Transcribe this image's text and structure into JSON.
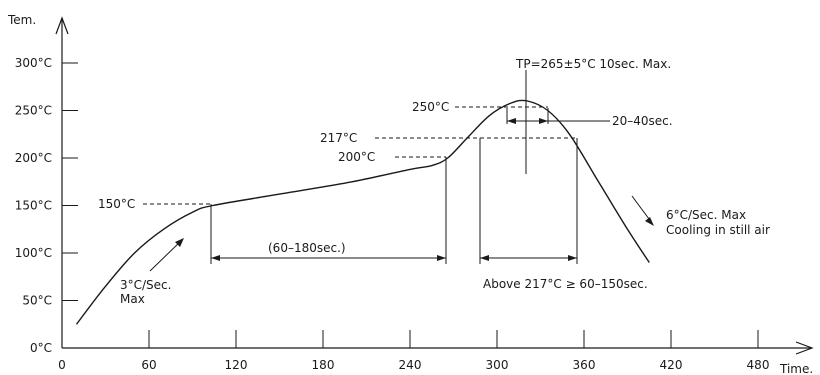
{
  "chart_data": {
    "type": "line",
    "title": "",
    "xlabel": "Time.",
    "ylabel": "Tem.",
    "xlim": [
      0,
      520
    ],
    "ylim": [
      0,
      330
    ],
    "x_ticks": [
      {
        "value": 0,
        "label": "0"
      },
      {
        "value": 60,
        "label": "60"
      },
      {
        "value": 120,
        "label": "120"
      },
      {
        "value": 180,
        "label": "180"
      },
      {
        "value": 240,
        "label": "240"
      },
      {
        "value": 300,
        "label": "300"
      },
      {
        "value": 360,
        "label": "360"
      },
      {
        "value": 420,
        "label": "420"
      },
      {
        "value": 480,
        "label": "480"
      }
    ],
    "y_ticks": [
      {
        "value": 0,
        "label": "0°C"
      },
      {
        "value": 50,
        "label": "50°C"
      },
      {
        "value": 100,
        "label": "100°C"
      },
      {
        "value": 150,
        "label": "150°C"
      },
      {
        "value": 200,
        "label": "200°C"
      },
      {
        "value": 250,
        "label": "250°C"
      },
      {
        "value": 300,
        "label": "300°C"
      }
    ],
    "grid": false,
    "series": [
      {
        "x": [
          10,
          30,
          50,
          70,
          90,
          104,
          150,
          200,
          240,
          255,
          266,
          280,
          295,
          310,
          321,
          335,
          350,
          370,
          390,
          405
        ],
        "y": [
          25,
          65,
          100,
          125,
          143,
          150,
          162,
          175,
          188,
          192,
          200,
          222,
          245,
          258,
          260,
          250,
          225,
          175,
          125,
          90
        ]
      }
    ],
    "annotations": {
      "preheat_rate": {
        "line1": "3°C/Sec.",
        "line2": "Max"
      },
      "cooling": {
        "line1": "6°C/Sec. Max",
        "line2": "Cooling in still air"
      },
      "soak_time": "(60–180sec.)",
      "above_217": "Above 217°C ≥ 60–150sec.",
      "peak_time": "20–40sec.",
      "peak": "TP=265±5°C  10sec. Max.",
      "level_150": "150°C",
      "level_200": "200°C",
      "level_217": "217°C",
      "level_250": "250°C"
    }
  }
}
